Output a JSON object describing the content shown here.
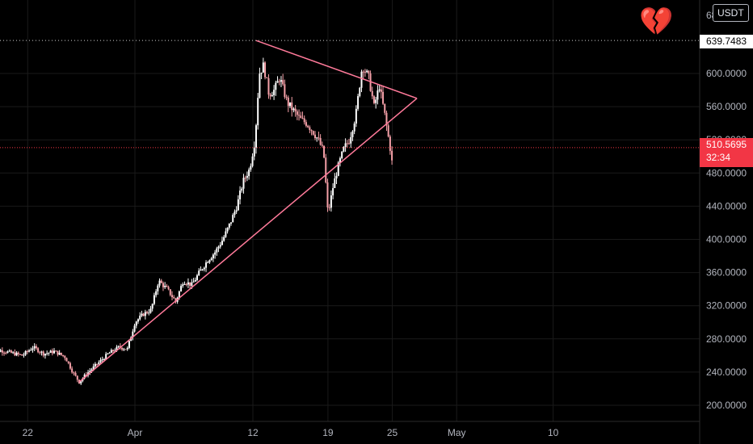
{
  "header": {
    "currency": "USDT",
    "sentiment_emoji": "💔"
  },
  "price_axis": {
    "last_price": "510.5695",
    "countdown": "32:34",
    "high_marker": "639.7483",
    "top_partial_label": "680.0000"
  },
  "colors": {
    "background": "#000000",
    "candle_up": "#ffffff",
    "candle_down": "#f5a0a8",
    "trendline": "#ff7a9a",
    "last_price": "#f23645",
    "grid": "#1a1a1a",
    "axis_text": "#b2b5be"
  },
  "chart_data": {
    "type": "candlestick",
    "title": "",
    "xlabel": "",
    "ylabel": "",
    "ylim": [
      190,
      680
    ],
    "y_ticks": [
      200,
      240,
      280,
      320,
      360,
      400,
      440,
      480,
      520,
      560,
      600
    ],
    "x_tick_labels": [
      "22",
      "Apr",
      "12",
      "19",
      "25",
      "May",
      "10"
    ],
    "x_tick_days": [
      -10,
      0,
      11,
      18,
      24,
      30,
      39
    ],
    "x_range_days": [
      -13.7,
      52
    ],
    "grid": true,
    "high_line": 639.7483,
    "last_price": 510.5695,
    "price_path": [
      [
        -13.7,
        265
      ],
      [
        -12.5,
        266
      ],
      [
        -11.5,
        263
      ],
      [
        -10.5,
        260
      ],
      [
        -9.5,
        270
      ],
      [
        -8.5,
        262
      ],
      [
        -7.5,
        265
      ],
      [
        -6.5,
        258
      ],
      [
        -5.8,
        240
      ],
      [
        -5.2,
        228
      ],
      [
        -4.5,
        238
      ],
      [
        -3.5,
        250
      ],
      [
        -2.5,
        262
      ],
      [
        -1.5,
        270
      ],
      [
        -0.7,
        268
      ],
      [
        0.0,
        300
      ],
      [
        0.8,
        310
      ],
      [
        1.5,
        315
      ],
      [
        2.2,
        350
      ],
      [
        3.0,
        340
      ],
      [
        3.8,
        325
      ],
      [
        4.5,
        350
      ],
      [
        5.3,
        345
      ],
      [
        6.0,
        360
      ],
      [
        6.8,
        375
      ],
      [
        7.5,
        385
      ],
      [
        8.2,
        400
      ],
      [
        8.9,
        420
      ],
      [
        9.5,
        440
      ],
      [
        10.1,
        470
      ],
      [
        10.7,
        485
      ],
      [
        11.2,
        520
      ],
      [
        11.6,
        600
      ],
      [
        12.0,
        610
      ],
      [
        12.5,
        575
      ],
      [
        13.0,
        580
      ],
      [
        13.5,
        595
      ],
      [
        14.2,
        565
      ],
      [
        14.8,
        555
      ],
      [
        15.4,
        545
      ],
      [
        16.0,
        540
      ],
      [
        16.6,
        530
      ],
      [
        17.1,
        520
      ],
      [
        17.6,
        505
      ],
      [
        18.0,
        430
      ],
      [
        18.5,
        465
      ],
      [
        19.0,
        490
      ],
      [
        19.5,
        510
      ],
      [
        20.0,
        520
      ],
      [
        20.6,
        550
      ],
      [
        21.2,
        610
      ],
      [
        21.8,
        595
      ],
      [
        22.3,
        560
      ],
      [
        22.8,
        585
      ],
      [
        23.3,
        550
      ],
      [
        23.8,
        510
      ],
      [
        24.1,
        480
      ]
    ],
    "trendlines": [
      {
        "name": "",
        "from": [
          -5.2,
          228
        ],
        "to": [
          26.3,
          570
        ]
      },
      {
        "name": "",
        "from": [
          11.3,
          639.7483
        ],
        "to": [
          26.3,
          570
        ]
      }
    ],
    "pennant_apex": [
      26.3,
      570
    ]
  }
}
